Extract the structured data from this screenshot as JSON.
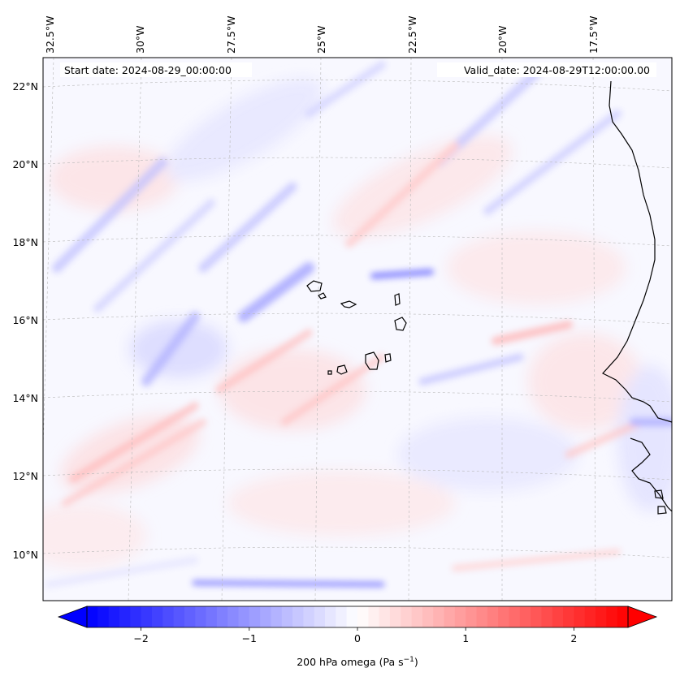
{
  "map": {
    "start_label": "Start date: 2024-08-29_00:00:00",
    "valid_label": "Valid_date: 2024-08-29T12:00:00.00",
    "lon_ticks": [
      "32.5°W",
      "30°W",
      "27.5°W",
      "25°W",
      "22.5°W",
      "20°W",
      "17.5°W"
    ],
    "lat_ticks": [
      "22°N",
      "20°N",
      "18°N",
      "16°N",
      "14°N",
      "12°N",
      "10°N"
    ],
    "extent": {
      "lon_min": -33.0,
      "lon_max": -15.5,
      "lat_min": 8.9,
      "lat_max": 22.8
    },
    "projection": "Lambert conformal",
    "gridlines": true
  },
  "colorbar": {
    "label_main": "200 hPa omega (Pa s",
    "label_exp": "−1",
    "label_close": ")",
    "ticks": [
      "−2",
      "−1",
      "0",
      "1",
      "2"
    ],
    "tick_values": [
      -2,
      -1,
      0,
      1,
      2
    ],
    "vmin": -2.5,
    "vmax": 2.5,
    "extend": "both",
    "colormap": "bwr",
    "low_color": "#0000ff",
    "mid_color": "#ffffff",
    "high_color": "#ff0000"
  }
}
